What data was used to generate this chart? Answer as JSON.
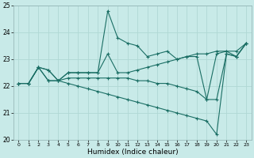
{
  "xlabel": "Humidex (Indice chaleur)",
  "bg_color": "#c8eae8",
  "grid_color": "#b0d8d4",
  "line_color": "#1a6e64",
  "ylim": [
    20,
    25
  ],
  "xlim": [
    -0.5,
    23.5
  ],
  "yticks": [
    20,
    21,
    22,
    23,
    24,
    25
  ],
  "xticks": [
    0,
    1,
    2,
    3,
    4,
    5,
    6,
    7,
    8,
    9,
    10,
    11,
    12,
    13,
    14,
    15,
    16,
    17,
    18,
    19,
    20,
    21,
    22,
    23
  ],
  "series": [
    [
      22.1,
      22.1,
      22.7,
      22.6,
      22.2,
      22.5,
      22.5,
      22.5,
      22.5,
      24.8,
      23.8,
      23.6,
      23.5,
      23.1,
      23.2,
      23.3,
      23.0,
      23.1,
      23.1,
      21.5,
      23.2,
      23.3,
      23.1,
      23.6
    ],
    [
      22.1,
      22.1,
      22.7,
      22.6,
      22.2,
      22.5,
      22.5,
      22.5,
      22.5,
      23.2,
      22.5,
      22.5,
      22.6,
      22.7,
      22.8,
      22.9,
      23.0,
      23.1,
      23.2,
      23.2,
      23.3,
      23.3,
      23.3,
      23.6
    ],
    [
      22.1,
      22.1,
      22.7,
      22.2,
      22.2,
      22.3,
      22.3,
      22.3,
      22.3,
      22.3,
      22.3,
      22.3,
      22.2,
      22.2,
      22.1,
      22.1,
      22.0,
      21.9,
      21.8,
      21.5,
      21.5,
      23.2,
      23.1,
      23.6
    ],
    [
      22.1,
      22.1,
      22.7,
      22.2,
      22.2,
      22.1,
      22.0,
      21.9,
      21.8,
      21.7,
      21.6,
      21.5,
      21.4,
      21.3,
      21.2,
      21.1,
      21.0,
      20.9,
      20.8,
      20.7,
      20.2,
      23.2,
      23.1,
      23.6
    ]
  ]
}
